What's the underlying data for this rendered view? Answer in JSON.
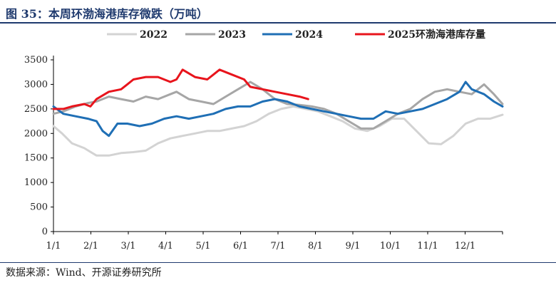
{
  "title": "图 35：本周环渤海港库存微跌（万吨）",
  "source": "数据来源：Wind、开源证券研究所",
  "chart_data": {
    "type": "line",
    "title": "本周环渤海港库存微跌（万吨）",
    "xlabel": "",
    "ylabel": "",
    "x_ticks": [
      "1/1",
      "2/1",
      "3/1",
      "4/1",
      "5/1",
      "6/1",
      "7/1",
      "8/1",
      "9/1",
      "10/1",
      "11/1",
      "12/1"
    ],
    "y_ticks": [
      0,
      500,
      1000,
      1500,
      2000,
      2500,
      3000,
      3500
    ],
    "ylim": [
      0,
      3500
    ],
    "xlim": [
      0,
      365
    ],
    "grid": false,
    "legend_position": "top",
    "series": [
      {
        "name": "2022",
        "color": "#d3d3d3",
        "points": [
          [
            0,
            2150
          ],
          [
            7,
            2000
          ],
          [
            15,
            1800
          ],
          [
            25,
            1700
          ],
          [
            35,
            1550
          ],
          [
            45,
            1550
          ],
          [
            55,
            1600
          ],
          [
            65,
            1620
          ],
          [
            75,
            1650
          ],
          [
            85,
            1800
          ],
          [
            95,
            1900
          ],
          [
            105,
            1950
          ],
          [
            115,
            2000
          ],
          [
            125,
            2050
          ],
          [
            135,
            2050
          ],
          [
            145,
            2100
          ],
          [
            155,
            2150
          ],
          [
            165,
            2250
          ],
          [
            175,
            2400
          ],
          [
            185,
            2500
          ],
          [
            195,
            2550
          ],
          [
            205,
            2500
          ],
          [
            215,
            2450
          ],
          [
            225,
            2350
          ],
          [
            235,
            2250
          ],
          [
            245,
            2100
          ],
          [
            255,
            2050
          ],
          [
            265,
            2150
          ],
          [
            275,
            2300
          ],
          [
            285,
            2300
          ],
          [
            295,
            2050
          ],
          [
            305,
            1800
          ],
          [
            315,
            1780
          ],
          [
            325,
            1950
          ],
          [
            335,
            2200
          ],
          [
            345,
            2300
          ],
          [
            355,
            2300
          ],
          [
            365,
            2380
          ]
        ]
      },
      {
        "name": "2023",
        "color": "#a6a6a6",
        "points": [
          [
            0,
            2400
          ],
          [
            8,
            2450
          ],
          [
            18,
            2550
          ],
          [
            28,
            2620
          ],
          [
            35,
            2650
          ],
          [
            45,
            2750
          ],
          [
            55,
            2700
          ],
          [
            65,
            2650
          ],
          [
            75,
            2750
          ],
          [
            85,
            2700
          ],
          [
            95,
            2800
          ],
          [
            100,
            2850
          ],
          [
            110,
            2700
          ],
          [
            120,
            2650
          ],
          [
            130,
            2600
          ],
          [
            140,
            2750
          ],
          [
            150,
            2900
          ],
          [
            160,
            3050
          ],
          [
            170,
            2900
          ],
          [
            180,
            2700
          ],
          [
            190,
            2600
          ],
          [
            200,
            2580
          ],
          [
            210,
            2550
          ],
          [
            220,
            2500
          ],
          [
            230,
            2400
          ],
          [
            240,
            2250
          ],
          [
            250,
            2100
          ],
          [
            260,
            2100
          ],
          [
            270,
            2250
          ],
          [
            280,
            2400
          ],
          [
            290,
            2500
          ],
          [
            300,
            2700
          ],
          [
            310,
            2850
          ],
          [
            320,
            2900
          ],
          [
            330,
            2850
          ],
          [
            340,
            2800
          ],
          [
            350,
            3000
          ],
          [
            358,
            2800
          ],
          [
            365,
            2600
          ]
        ]
      },
      {
        "name": "2024",
        "color": "#1f6fb5",
        "points": [
          [
            0,
            2550
          ],
          [
            8,
            2400
          ],
          [
            18,
            2350
          ],
          [
            28,
            2300
          ],
          [
            35,
            2250
          ],
          [
            40,
            2050
          ],
          [
            45,
            1950
          ],
          [
            52,
            2200
          ],
          [
            60,
            2200
          ],
          [
            70,
            2150
          ],
          [
            80,
            2200
          ],
          [
            90,
            2300
          ],
          [
            100,
            2350
          ],
          [
            110,
            2300
          ],
          [
            120,
            2350
          ],
          [
            130,
            2400
          ],
          [
            140,
            2500
          ],
          [
            150,
            2550
          ],
          [
            160,
            2550
          ],
          [
            170,
            2650
          ],
          [
            180,
            2700
          ],
          [
            190,
            2650
          ],
          [
            200,
            2550
          ],
          [
            210,
            2500
          ],
          [
            220,
            2450
          ],
          [
            230,
            2400
          ],
          [
            240,
            2350
          ],
          [
            250,
            2300
          ],
          [
            260,
            2300
          ],
          [
            270,
            2450
          ],
          [
            280,
            2400
          ],
          [
            290,
            2450
          ],
          [
            300,
            2500
          ],
          [
            310,
            2600
          ],
          [
            320,
            2700
          ],
          [
            330,
            2850
          ],
          [
            335,
            3050
          ],
          [
            340,
            2900
          ],
          [
            350,
            2800
          ],
          [
            358,
            2650
          ],
          [
            365,
            2550
          ]
        ]
      },
      {
        "name": "2025环渤海港库存量",
        "color": "#e8141c",
        "points": [
          [
            0,
            2500
          ],
          [
            8,
            2500
          ],
          [
            15,
            2550
          ],
          [
            25,
            2600
          ],
          [
            30,
            2550
          ],
          [
            35,
            2700
          ],
          [
            45,
            2850
          ],
          [
            55,
            2900
          ],
          [
            60,
            3000
          ],
          [
            65,
            3100
          ],
          [
            75,
            3150
          ],
          [
            85,
            3150
          ],
          [
            95,
            3050
          ],
          [
            100,
            3100
          ],
          [
            105,
            3300
          ],
          [
            115,
            3150
          ],
          [
            125,
            3100
          ],
          [
            130,
            3200
          ],
          [
            135,
            3300
          ],
          [
            145,
            3200
          ],
          [
            155,
            3100
          ],
          [
            160,
            2950
          ],
          [
            170,
            2900
          ],
          [
            180,
            2850
          ],
          [
            190,
            2800
          ],
          [
            200,
            2750
          ],
          [
            207,
            2700
          ]
        ]
      }
    ]
  }
}
